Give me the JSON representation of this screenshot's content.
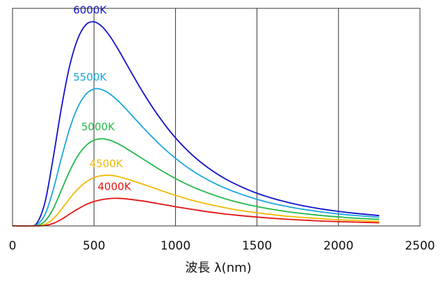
{
  "chart_data": {
    "type": "line",
    "title": "",
    "xlabel": "波長 λ(nm)",
    "ylabel": "",
    "xlim": [
      0,
      2500
    ],
    "ylim": [
      0,
      1.0
    ],
    "x_ticks": [
      "0",
      "500",
      "1000",
      "1500",
      "2000",
      "2500"
    ],
    "grid": "vertical",
    "legend": "none",
    "x_sample": [
      0,
      100,
      150,
      200,
      250,
      300,
      350,
      400,
      450,
      500,
      550,
      600,
      650,
      700,
      800,
      900,
      1000,
      1100,
      1200,
      1300,
      1400,
      1500,
      1600,
      1700,
      1800,
      1900,
      2000,
      2100,
      2250
    ],
    "series": [
      {
        "name": "6000K",
        "color": "#1111cc",
        "values": [
          0,
          0.0,
          0.014,
          0.115,
          0.325,
          0.56,
          0.757,
          0.888,
          0.955,
          0.969,
          0.946,
          0.898,
          0.836,
          0.768,
          0.635,
          0.517,
          0.418,
          0.339,
          0.276,
          0.226,
          0.187,
          0.155,
          0.13,
          0.11,
          0.093,
          0.08,
          0.069,
          0.06,
          0.049
        ]
      },
      {
        "name": "5500K",
        "color": "#1aa6dc",
        "values": [
          0,
          0.0,
          0.006,
          0.055,
          0.172,
          0.322,
          0.46,
          0.563,
          0.625,
          0.65,
          0.647,
          0.625,
          0.592,
          0.552,
          0.468,
          0.389,
          0.321,
          0.264,
          0.218,
          0.181,
          0.151,
          0.126,
          0.106,
          0.09,
          0.077,
          0.066,
          0.057,
          0.05,
          0.041
        ]
      },
      {
        "name": "5000K",
        "color": "#22b84a",
        "values": [
          0,
          0.0,
          0.002,
          0.023,
          0.082,
          0.17,
          0.259,
          0.332,
          0.381,
          0.407,
          0.414,
          0.406,
          0.389,
          0.367,
          0.318,
          0.269,
          0.225,
          0.187,
          0.156,
          0.13,
          0.109,
          0.092,
          0.078,
          0.066,
          0.057,
          0.049,
          0.043,
          0.037,
          0.031
        ]
      },
      {
        "name": "4500K",
        "color": "#f2b800",
        "values": [
          0,
          0.0,
          0.0,
          0.008,
          0.034,
          0.079,
          0.129,
          0.174,
          0.208,
          0.229,
          0.239,
          0.24,
          0.234,
          0.223,
          0.198,
          0.171,
          0.145,
          0.122,
          0.103,
          0.087,
          0.073,
          0.062,
          0.053,
          0.045,
          0.039,
          0.034,
          0.029,
          0.026,
          0.021
        ]
      },
      {
        "name": "4000K",
        "color": "#e31414",
        "values": [
          0,
          0.0,
          0.0,
          0.002,
          0.012,
          0.031,
          0.056,
          0.08,
          0.101,
          0.116,
          0.125,
          0.13,
          0.131,
          0.128,
          0.118,
          0.105,
          0.091,
          0.079,
          0.067,
          0.057,
          0.049,
          0.042,
          0.036,
          0.031,
          0.027,
          0.023,
          0.02,
          0.018,
          0.015
        ]
      }
    ]
  }
}
